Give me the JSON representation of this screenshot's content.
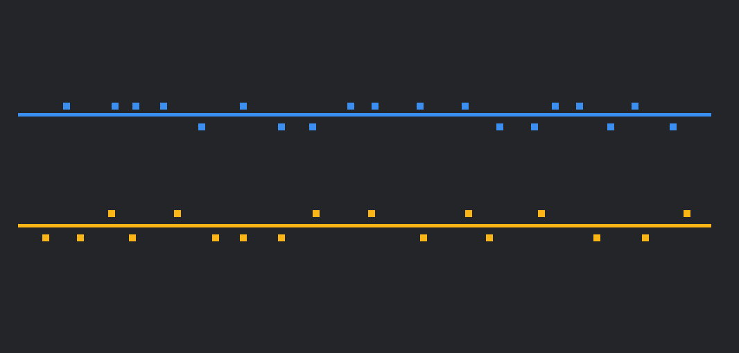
{
  "theme": {
    "background": "#232529"
  },
  "tracks": [
    {
      "id": "blue-track",
      "color": "#3a8ff0",
      "above": [
        65,
        135,
        165,
        205,
        320,
        475,
        510,
        575,
        640,
        770,
        805,
        885
      ],
      "below": [
        260,
        375,
        420,
        690,
        740,
        850,
        940
      ]
    },
    {
      "id": "amber-track",
      "color": "#fbb517",
      "above": [
        130,
        225,
        425,
        505,
        645,
        750,
        960
      ],
      "below": [
        35,
        85,
        160,
        280,
        320,
        375,
        580,
        675,
        830,
        900
      ]
    }
  ]
}
